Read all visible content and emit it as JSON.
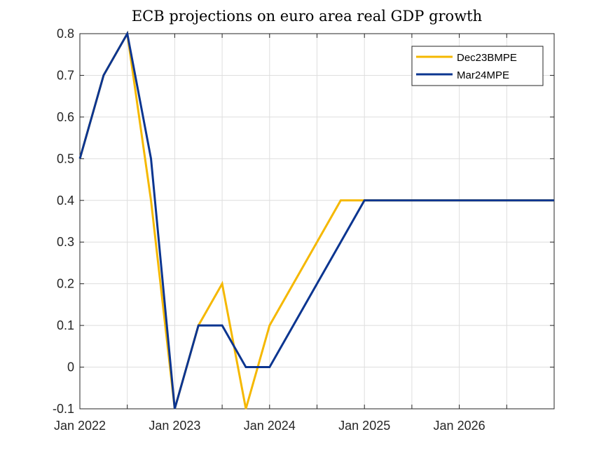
{
  "chart_data": {
    "type": "line",
    "title": "ECB projections on euro area real GDP growth",
    "xlabel": "",
    "ylabel": "",
    "x_start": "Jan 2022",
    "x_end": "Dec 2026",
    "x": [
      "2022Q1",
      "2022Q2",
      "2022Q3",
      "2022Q4",
      "2023Q1",
      "2023Q2",
      "2023Q3",
      "2023Q4",
      "2024Q1",
      "2024Q2",
      "2024Q3",
      "2024Q4",
      "2025Q1",
      "2025Q2",
      "2025Q3",
      "2025Q4",
      "2026Q1",
      "2026Q2",
      "2026Q3",
      "2026Q4",
      "2027Q1"
    ],
    "x_ticks": [
      "Jan 2022",
      "Jan 2023",
      "Jan 2024",
      "Jan 2025",
      "Jan 2026"
    ],
    "ylim": [
      -0.1,
      0.8
    ],
    "y_ticks": [
      "-0.1",
      "0",
      "0.1",
      "0.2",
      "0.3",
      "0.4",
      "0.5",
      "0.6",
      "0.7",
      "0.8"
    ],
    "grid": true,
    "legend_position": "top-right",
    "series": [
      {
        "name": "Dec23BMPE",
        "color": "#f5b800",
        "values": [
          0.5,
          0.7,
          0.8,
          0.4,
          -0.1,
          0.1,
          0.2,
          -0.1,
          0.1,
          0.2,
          0.3,
          0.4,
          0.4,
          0.4,
          0.4,
          0.4,
          0.4,
          0.4,
          0.4,
          0.4,
          0.4
        ]
      },
      {
        "name": "Mar24MPE",
        "color": "#0b3590",
        "values": [
          0.5,
          0.7,
          0.8,
          0.5,
          -0.1,
          0.1,
          0.1,
          0.0,
          0.0,
          0.1,
          0.2,
          0.3,
          0.4,
          0.4,
          0.4,
          0.4,
          0.4,
          0.4,
          0.4,
          0.4,
          0.4
        ]
      }
    ]
  }
}
